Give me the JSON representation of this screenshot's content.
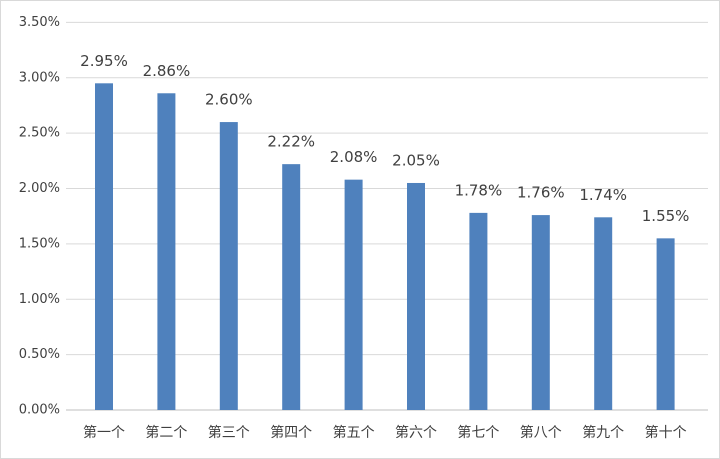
{
  "chart_data": {
    "type": "bar",
    "categories": [
      "第一个",
      "第二个",
      "第三个",
      "第四个",
      "第五个",
      "第六个",
      "第七个",
      "第八个",
      "第九个",
      "第十个"
    ],
    "values": [
      2.95,
      2.86,
      2.6,
      2.22,
      2.08,
      2.05,
      1.78,
      1.76,
      1.74,
      1.55
    ],
    "value_labels": [
      "2.95%",
      "2.86%",
      "2.60%",
      "2.22%",
      "2.08%",
      "2.05%",
      "1.78%",
      "1.76%",
      "1.74%",
      "1.55%"
    ],
    "color": "#4f81bd",
    "ylim": [
      0,
      3.5
    ],
    "yticks": [
      {
        "value": 0,
        "label": "0.00%"
      },
      {
        "value": 0.5,
        "label": "0.50%"
      },
      {
        "value": 1,
        "label": "1.00%"
      },
      {
        "value": 1.5,
        "label": "1.50%"
      },
      {
        "value": 2,
        "label": "2.00%"
      },
      {
        "value": 2.5,
        "label": "2.50%"
      },
      {
        "value": 3,
        "label": "3.00%"
      },
      {
        "value": 3.5,
        "label": "3.50%"
      }
    ],
    "grid": true
  }
}
